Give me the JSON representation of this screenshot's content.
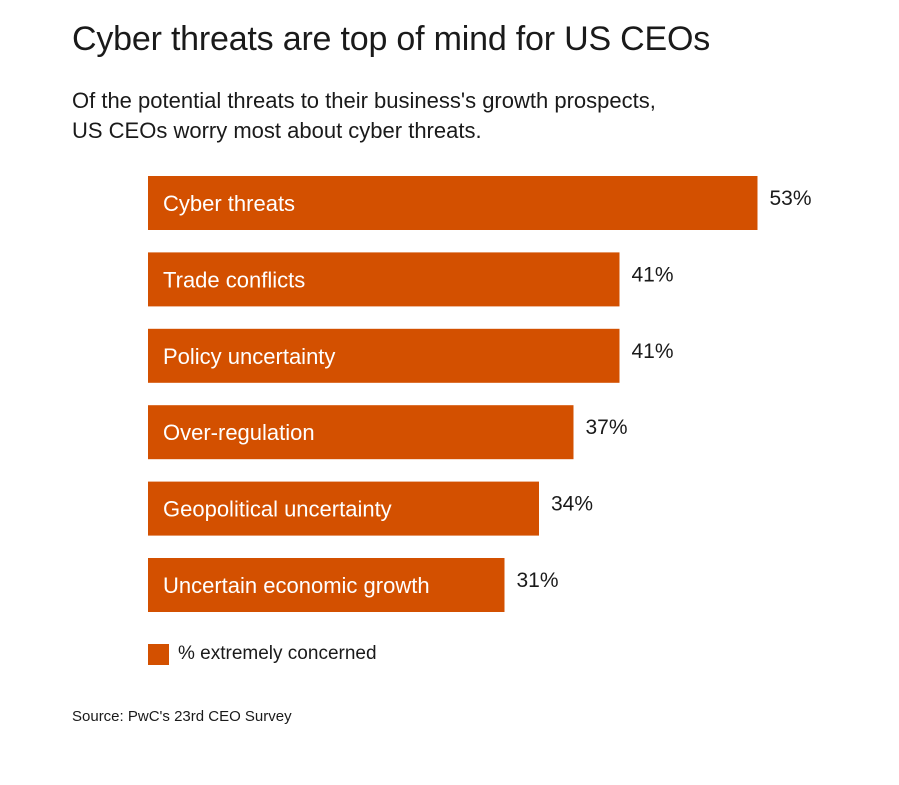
{
  "chart_data": {
    "type": "bar",
    "orientation": "horizontal",
    "title": "Cyber threats are top of mind for US CEOs",
    "subtitle": [
      "Of the potential threats to their business's growth prospects,",
      "US CEOs worry most about cyber threats."
    ],
    "categories": [
      "Cyber threats",
      "Trade conflicts",
      "Policy uncertainty",
      "Over-regulation",
      "Geopolitical uncertainty",
      "Uncertain economic growth"
    ],
    "values": [
      53,
      41,
      41,
      37,
      34,
      31
    ],
    "value_labels": [
      "53%",
      "41%",
      "41%",
      "37%",
      "34%",
      "31%"
    ],
    "series": [
      {
        "name": "% extremely concerned",
        "values": [
          53,
          41,
          41,
          37,
          34,
          31
        ]
      }
    ],
    "xlabel": "",
    "ylabel": "",
    "xlim": [
      0,
      100
    ],
    "grid": false,
    "legend_position": "bottom-left",
    "bar_color": "#d35000",
    "label_color": "#ffffff",
    "source": "Source: PwC's 23rd CEO Survey"
  }
}
